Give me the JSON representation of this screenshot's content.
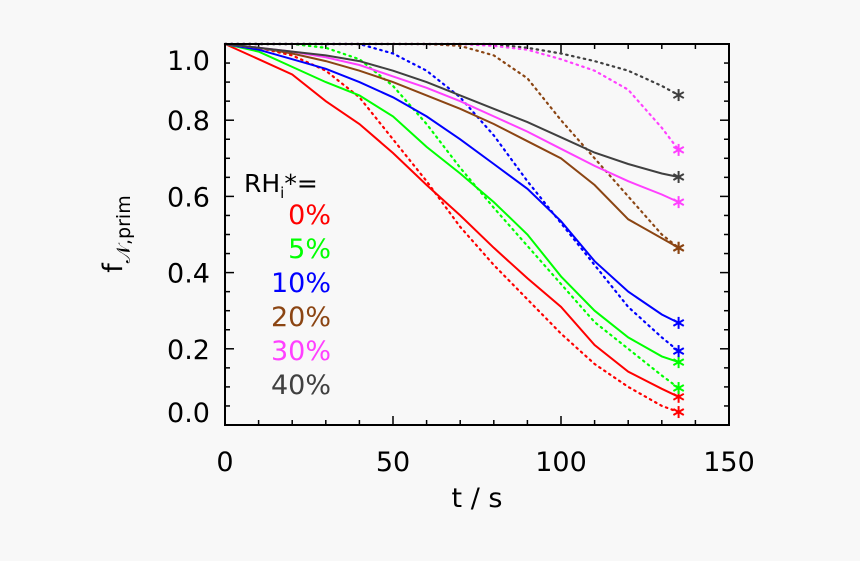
{
  "chart_data": {
    "type": "line",
    "xlabel": "t / s",
    "ylabel_main": "f",
    "ylabel_sub": "𝒩,prim",
    "xlim": [
      0,
      150
    ],
    "ylim": [
      0,
      1.0
    ],
    "xticks": [
      "0",
      "50",
      "100",
      "150"
    ],
    "xtick_values": [
      0,
      50,
      100,
      150
    ],
    "yticks": [
      "0.0",
      "0.2",
      "0.4",
      "0.6",
      "0.8",
      "1.0"
    ],
    "ytick_values": [
      0,
      0.2,
      0.4,
      0.6,
      0.8,
      1.0
    ],
    "grid": false,
    "legend_title": "RH",
    "legend_title_sub": "i",
    "legend_title_suffix": "*=",
    "legend_placement": "left",
    "x": [
      0,
      10,
      20,
      30,
      40,
      50,
      60,
      70,
      80,
      90,
      100,
      110,
      120,
      130,
      135
    ],
    "series": [
      {
        "name": "0%",
        "color": "#ff0000",
        "solid": [
          1.0,
          0.96,
          0.92,
          0.85,
          0.79,
          0.714,
          0.63,
          0.55,
          0.465,
          0.385,
          0.31,
          0.21,
          0.14,
          0.095,
          0.074
        ],
        "dotted": [
          1.0,
          0.99,
          0.97,
          0.93,
          0.86,
          0.75,
          0.64,
          0.52,
          0.42,
          0.33,
          0.24,
          0.16,
          0.1,
          0.05,
          0.034
        ]
      },
      {
        "name": "5%",
        "color": "#00ff00",
        "solid": [
          1.0,
          0.98,
          0.94,
          0.9,
          0.865,
          0.81,
          0.73,
          0.66,
          0.585,
          0.5,
          0.39,
          0.3,
          0.23,
          0.18,
          0.165
        ],
        "dotted": [
          1.0,
          1.0,
          1.0,
          0.99,
          0.96,
          0.89,
          0.79,
          0.675,
          0.57,
          0.47,
          0.37,
          0.27,
          0.2,
          0.13,
          0.097
        ]
      },
      {
        "name": "10%",
        "color": "#0000ff",
        "solid": [
          1.0,
          0.985,
          0.96,
          0.935,
          0.9,
          0.86,
          0.81,
          0.75,
          0.685,
          0.62,
          0.535,
          0.43,
          0.35,
          0.29,
          0.268
        ],
        "dotted": [
          1.0,
          1.0,
          1.0,
          1.0,
          1.0,
          0.975,
          0.93,
          0.86,
          0.76,
          0.64,
          0.53,
          0.42,
          0.31,
          0.23,
          0.194
        ]
      },
      {
        "name": "20%",
        "color": "#8b4513",
        "solid": [
          1.0,
          0.99,
          0.975,
          0.955,
          0.93,
          0.9,
          0.865,
          0.83,
          0.79,
          0.745,
          0.7,
          0.63,
          0.54,
          0.49,
          0.465
        ],
        "dotted": [
          1.0,
          1.0,
          1.0,
          1.0,
          1.0,
          1.0,
          1.0,
          0.995,
          0.97,
          0.91,
          0.8,
          0.7,
          0.6,
          0.5,
          0.465
        ]
      },
      {
        "name": "30%",
        "color": "#ff40ff",
        "solid": [
          1.0,
          0.99,
          0.98,
          0.965,
          0.945,
          0.915,
          0.885,
          0.85,
          0.81,
          0.77,
          0.725,
          0.68,
          0.64,
          0.605,
          0.585
        ],
        "dotted": [
          1.0,
          1.0,
          1.0,
          1.0,
          1.0,
          1.0,
          1.0,
          1.0,
          0.995,
          0.985,
          0.96,
          0.93,
          0.88,
          0.78,
          0.722
        ]
      },
      {
        "name": "40%",
        "color": "#404040",
        "solid": [
          1.0,
          0.99,
          0.98,
          0.97,
          0.955,
          0.93,
          0.9,
          0.865,
          0.83,
          0.795,
          0.755,
          0.715,
          0.685,
          0.66,
          0.651
        ],
        "dotted": [
          1.0,
          1.0,
          1.0,
          1.0,
          1.0,
          1.0,
          1.0,
          1.0,
          1.0,
          0.99,
          0.975,
          0.955,
          0.93,
          0.89,
          0.866
        ]
      }
    ],
    "end_marker": "asterisk"
  }
}
